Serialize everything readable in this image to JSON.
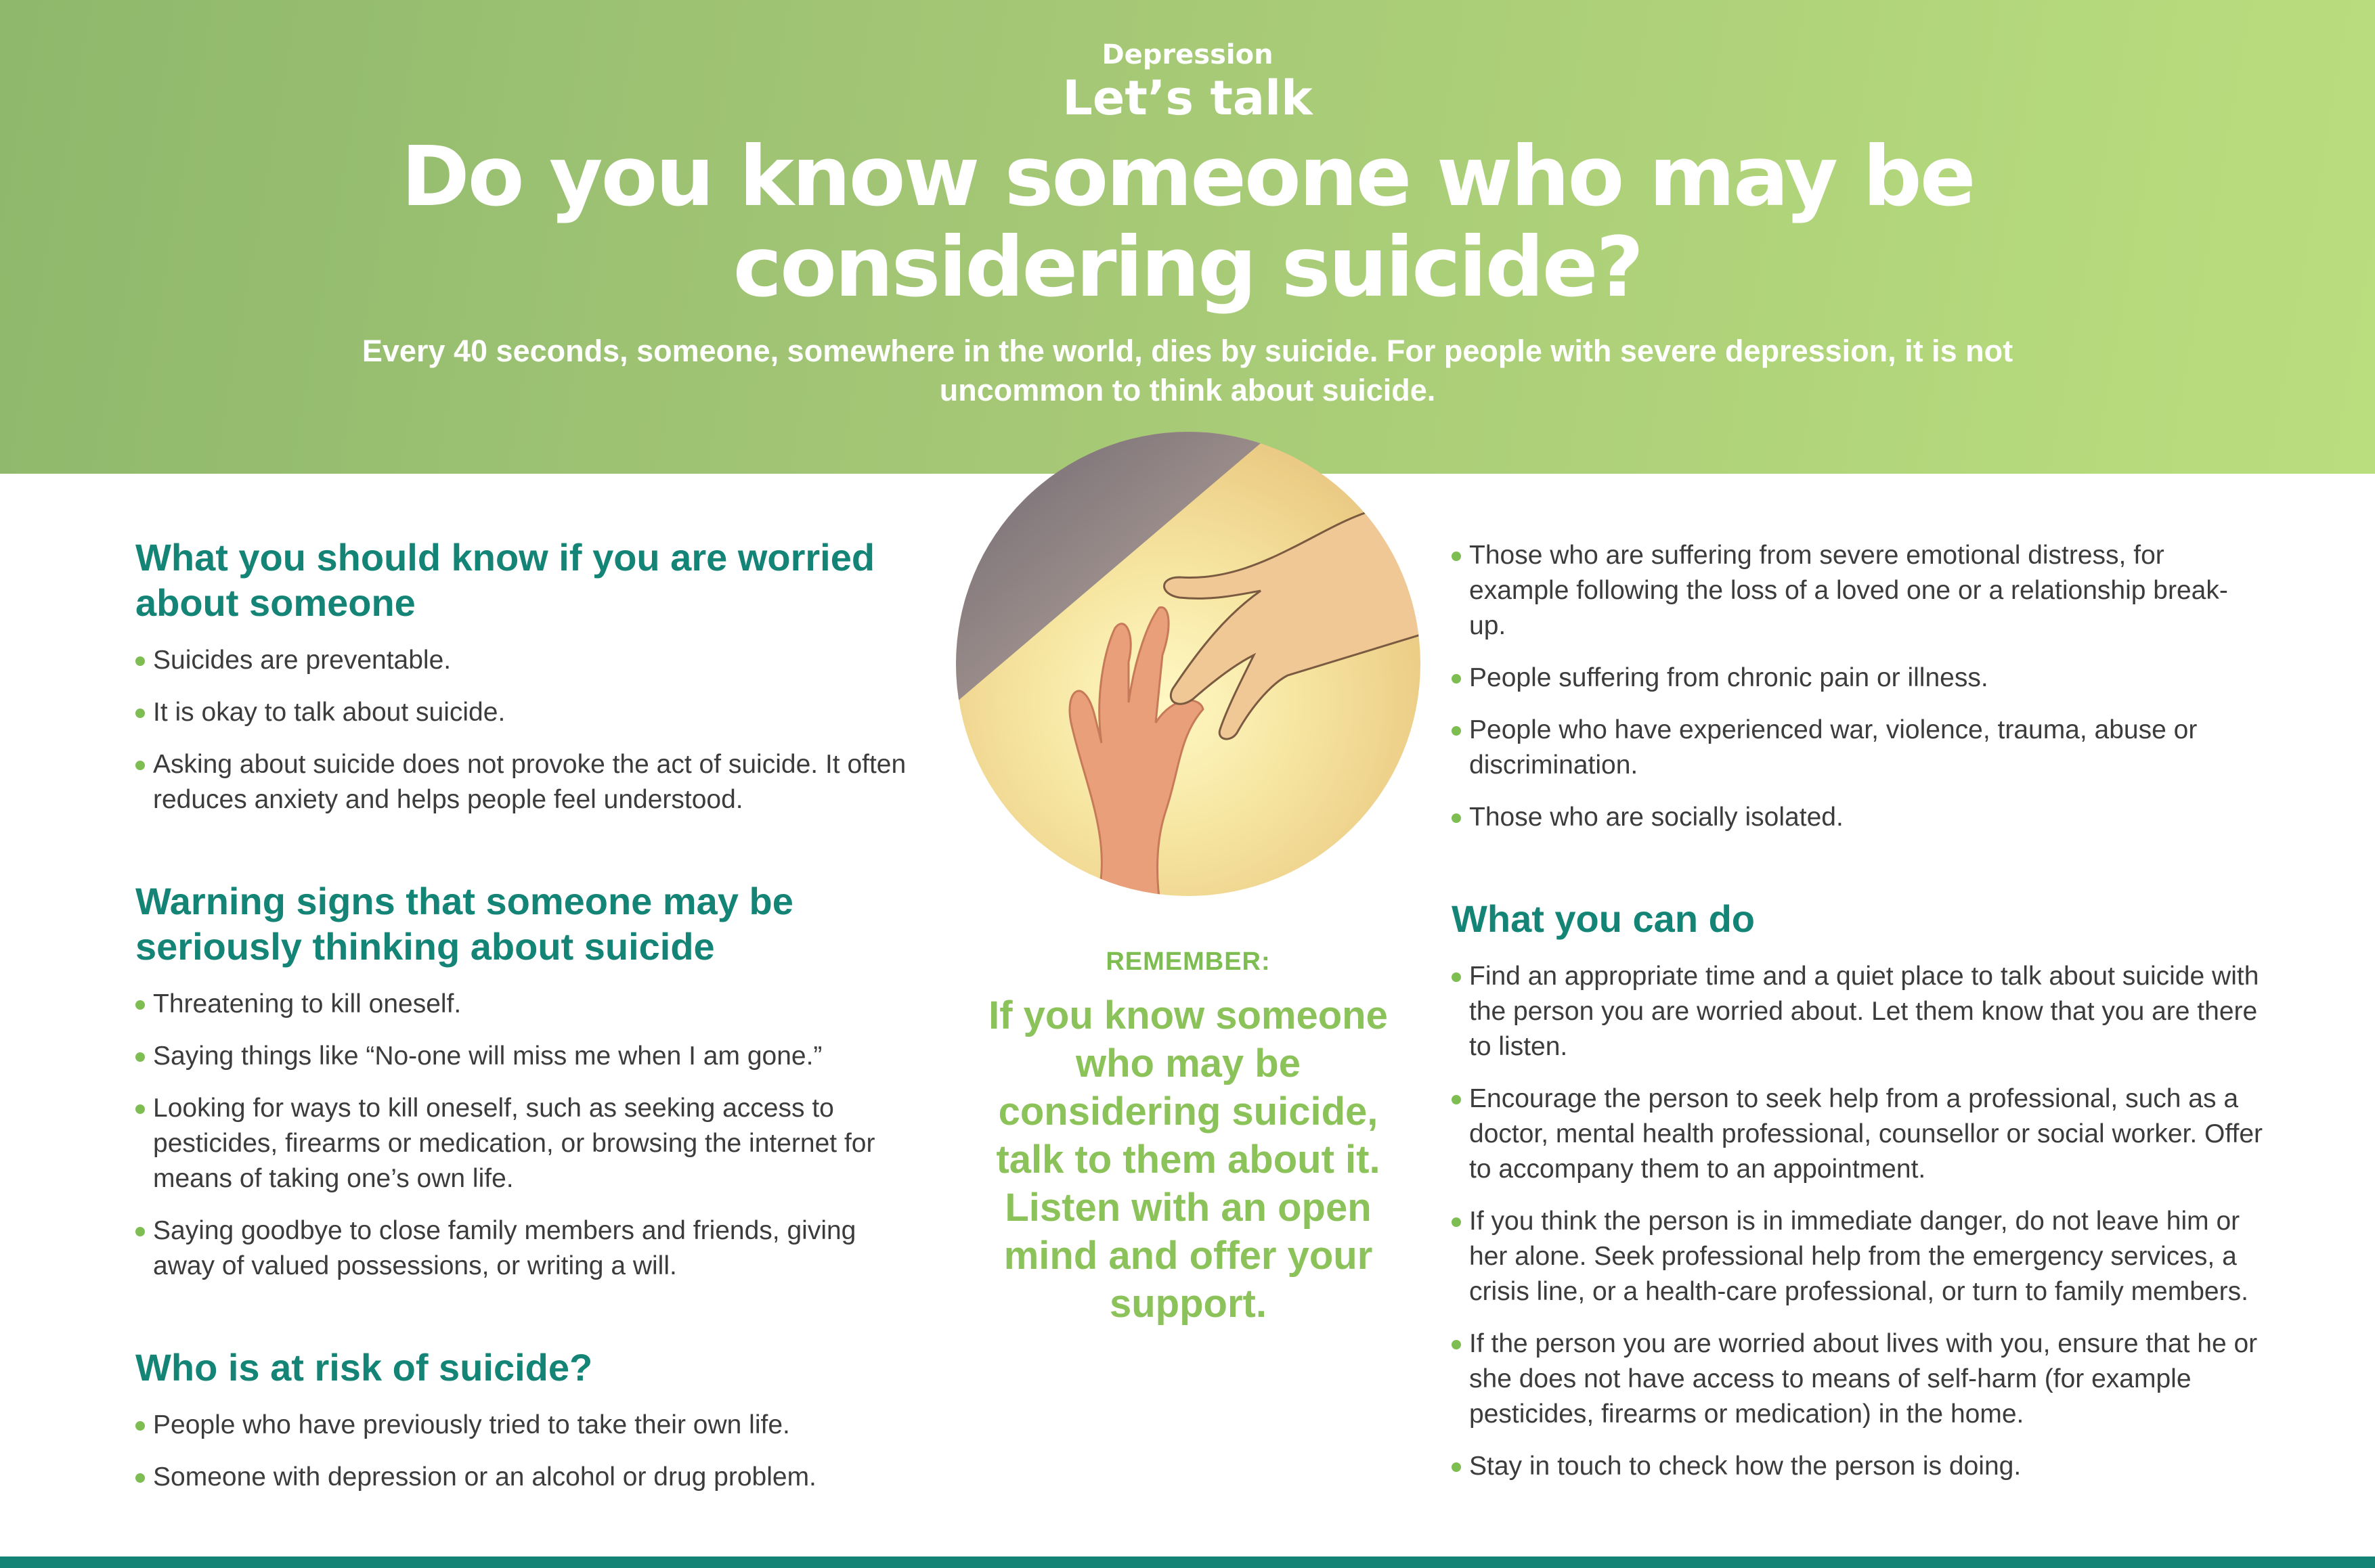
{
  "header": {
    "kicker": "Depression",
    "lets_talk": "Let’s talk",
    "title": "Do you know someone who may be considering suicide?",
    "subtitle": "Every 40 seconds, someone, somewhere in the world, dies by suicide. For people with severe depression, it is not uncommon to think about suicide."
  },
  "left": {
    "sections": [
      {
        "title": "What you should know if you are worried about someone",
        "items": [
          "Suicides are preventable.",
          "It is okay to talk about suicide.",
          "Asking about suicide does not provoke the act of suicide. It often reduces anxiety and helps people feel understood."
        ]
      },
      {
        "title": "Warning signs that someone may be seriously thinking about suicide",
        "items": [
          "Threatening to kill oneself.",
          "Saying things like “No-one will miss me when I am gone.”",
          "Looking for ways to kill oneself, such as seeking access to pesticides, firearms or medication, or browsing the internet for means of taking one’s own life.",
          "Saying goodbye to close family members and friends, giving away of valued possessions, or writing a will."
        ]
      },
      {
        "title": "Who is at risk of suicide?",
        "items": [
          "People who have previously tried to take their own life.",
          "Someone with depression or an alcohol or drug problem."
        ]
      }
    ]
  },
  "middle": {
    "remember_label": "REMEMBER:",
    "remember_text": "If you know someone who may be considering suicide, talk to them about it. Listen with an open mind and offer your support."
  },
  "right": {
    "risk_items": [
      "Those who are suffering from severe emotional distress, for example following the loss of a loved one or a relationship break-up.",
      "People suffering from chronic pain or illness.",
      "People who have experienced war, violence, trauma, abuse or discrimination.",
      "Those who are socially isolated."
    ],
    "can_do_title": "What you can do",
    "can_do_items": [
      "Find an appropriate time and a quiet place to talk about suicide with the person you are worried about. Let them know that you are there to listen.",
      "Encourage the person to seek help from a professional, such as a doctor, mental health professional, counsellor or social worker. Offer to accompany them to an appointment.",
      "If you think the person is in immediate danger, do not leave him or her alone. Seek professional help from the emergency services, a crisis line, or a health-care professional, or turn to family members.",
      "If the person you are worried about lives with you, ensure that he or she does not have access to means of self-harm (for example pesticides, firearms or medication) in the home.",
      "Stay in touch to check how the person is doing."
    ]
  },
  "colors": {
    "header_green": "#a5c876",
    "teal": "#138475",
    "bullet_green": "#7dbd52",
    "remember_green": "#8cc25a"
  },
  "icons": {
    "illustration": "reaching-hands-illustration"
  }
}
